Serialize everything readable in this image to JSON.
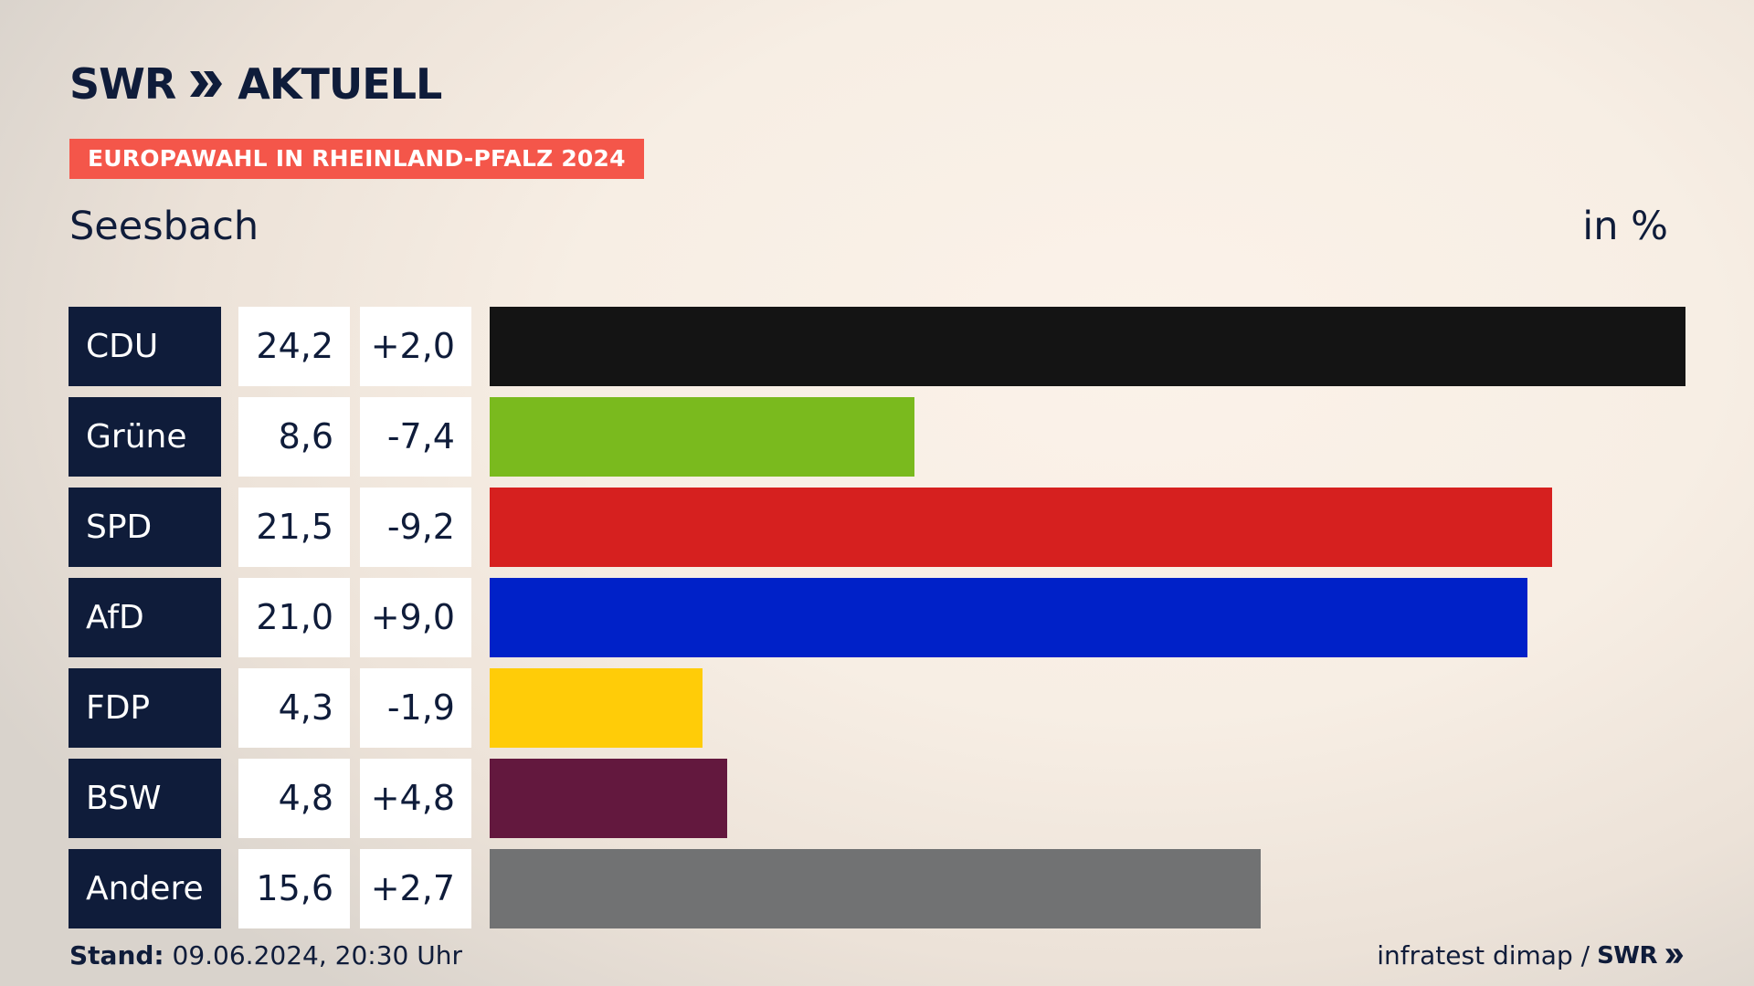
{
  "header": {
    "logo_text": "SWR",
    "logo_suffix": "AKTUELL",
    "tag": "EUROPAWAHL IN RHEINLAND-PFALZ 2024",
    "region": "Seesbach",
    "unit": "in %"
  },
  "footer": {
    "stand_label": "Stand:",
    "stand_value": " 09.06.2024, 20:30 Uhr",
    "source": "infratest dimap /",
    "source_logo": "SWR"
  },
  "colors": {
    "navy": "#0f1c3a",
    "tag": "#f4564a"
  },
  "chart_data": {
    "type": "bar",
    "orientation": "horizontal",
    "categories": [
      "CDU",
      "Grüne",
      "SPD",
      "AfD",
      "FDP",
      "BSW",
      "Andere"
    ],
    "values": [
      24.2,
      8.6,
      21.5,
      21.0,
      4.3,
      4.8,
      15.6
    ],
    "value_labels": [
      "24,2",
      "8,6",
      "21,5",
      "21,0",
      "4,3",
      "4,8",
      "15,6"
    ],
    "diff_labels": [
      "+2,0",
      "-7,4",
      "-9,2",
      "+9,0",
      "-1,9",
      "+4,8",
      "+2,7"
    ],
    "colors": [
      "#141414",
      "#7aba1e",
      "#d6201f",
      "#0021c8",
      "#ffcc08",
      "#63183e",
      "#717273"
    ],
    "xlim": [
      0,
      24.2
    ]
  }
}
